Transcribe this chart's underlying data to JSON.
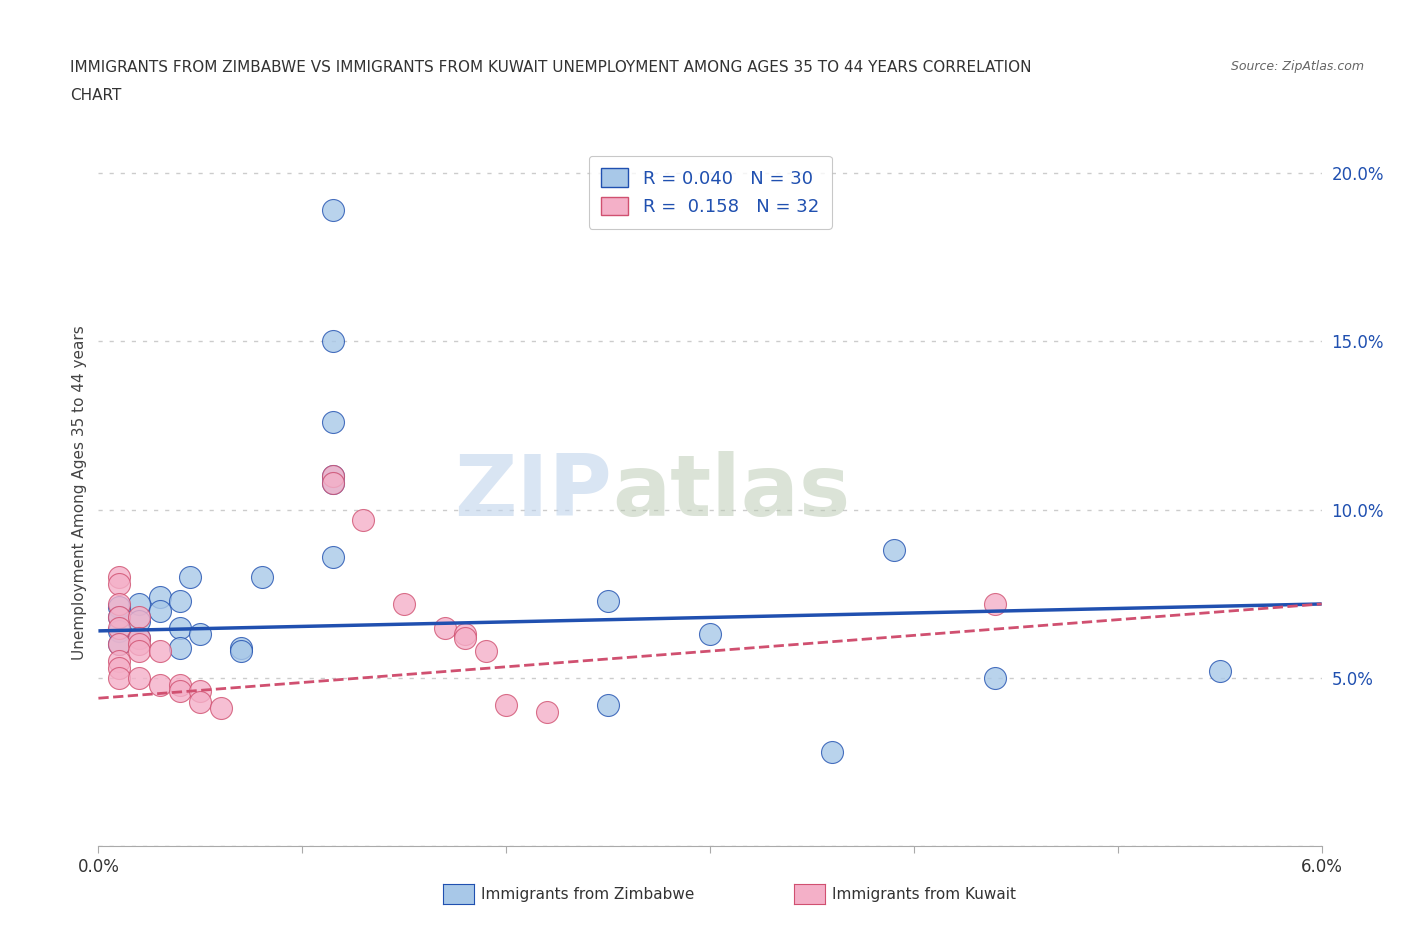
{
  "title_line1": "IMMIGRANTS FROM ZIMBABWE VS IMMIGRANTS FROM KUWAIT UNEMPLOYMENT AMONG AGES 35 TO 44 YEARS CORRELATION",
  "title_line2": "CHART",
  "source": "Source: ZipAtlas.com",
  "ylabel": "Unemployment Among Ages 35 to 44 years",
  "r_zimbabwe": "0.040",
  "n_zimbabwe": "30",
  "r_kuwait": "0.158",
  "n_kuwait": "32",
  "legend_label1": "Immigrants from Zimbabwe",
  "legend_label2": "Immigrants from Kuwait",
  "watermark_zip": "ZIP",
  "watermark_atlas": "atlas",
  "color_zimbabwe": "#a8c8e8",
  "color_kuwait": "#f4b0c8",
  "line_color_zimbabwe": "#2050b0",
  "line_color_kuwait": "#d05070",
  "xmin": 0.0,
  "xmax": 0.06,
  "ymin": 0.0,
  "ymax": 0.21,
  "yticks": [
    0.0,
    0.05,
    0.1,
    0.15,
    0.2
  ],
  "ytick_labels": [
    "",
    "5.0%",
    "10.0%",
    "15.0%",
    "20.0%"
  ],
  "zimbabwe_line": [
    0.064,
    0.072
  ],
  "kuwait_line": [
    0.044,
    0.072
  ],
  "zimbabwe_points": [
    [
      0.0115,
      0.189
    ],
    [
      0.0115,
      0.15
    ],
    [
      0.0115,
      0.126
    ],
    [
      0.0115,
      0.11
    ],
    [
      0.0115,
      0.108
    ],
    [
      0.0115,
      0.086
    ],
    [
      0.0045,
      0.08
    ],
    [
      0.008,
      0.08
    ],
    [
      0.003,
      0.074
    ],
    [
      0.004,
      0.073
    ],
    [
      0.002,
      0.072
    ],
    [
      0.001,
      0.071
    ],
    [
      0.003,
      0.07
    ],
    [
      0.001,
      0.068
    ],
    [
      0.002,
      0.067
    ],
    [
      0.004,
      0.065
    ],
    [
      0.001,
      0.064
    ],
    [
      0.005,
      0.063
    ],
    [
      0.002,
      0.062
    ],
    [
      0.001,
      0.06
    ],
    [
      0.004,
      0.059
    ],
    [
      0.007,
      0.059
    ],
    [
      0.007,
      0.058
    ],
    [
      0.025,
      0.073
    ],
    [
      0.03,
      0.063
    ],
    [
      0.039,
      0.088
    ],
    [
      0.025,
      0.042
    ],
    [
      0.036,
      0.028
    ],
    [
      0.044,
      0.05
    ],
    [
      0.055,
      0.052
    ]
  ],
  "kuwait_points": [
    [
      0.001,
      0.08
    ],
    [
      0.001,
      0.078
    ],
    [
      0.001,
      0.072
    ],
    [
      0.001,
      0.068
    ],
    [
      0.002,
      0.068
    ],
    [
      0.001,
      0.065
    ],
    [
      0.002,
      0.062
    ],
    [
      0.001,
      0.06
    ],
    [
      0.002,
      0.06
    ],
    [
      0.002,
      0.058
    ],
    [
      0.003,
      0.058
    ],
    [
      0.001,
      0.055
    ],
    [
      0.001,
      0.053
    ],
    [
      0.001,
      0.05
    ],
    [
      0.002,
      0.05
    ],
    [
      0.003,
      0.048
    ],
    [
      0.004,
      0.048
    ],
    [
      0.004,
      0.046
    ],
    [
      0.005,
      0.046
    ],
    [
      0.005,
      0.043
    ],
    [
      0.006,
      0.041
    ],
    [
      0.0115,
      0.11
    ],
    [
      0.0115,
      0.108
    ],
    [
      0.013,
      0.097
    ],
    [
      0.015,
      0.072
    ],
    [
      0.017,
      0.065
    ],
    [
      0.018,
      0.063
    ],
    [
      0.018,
      0.062
    ],
    [
      0.019,
      0.058
    ],
    [
      0.02,
      0.042
    ],
    [
      0.022,
      0.04
    ],
    [
      0.044,
      0.072
    ]
  ]
}
